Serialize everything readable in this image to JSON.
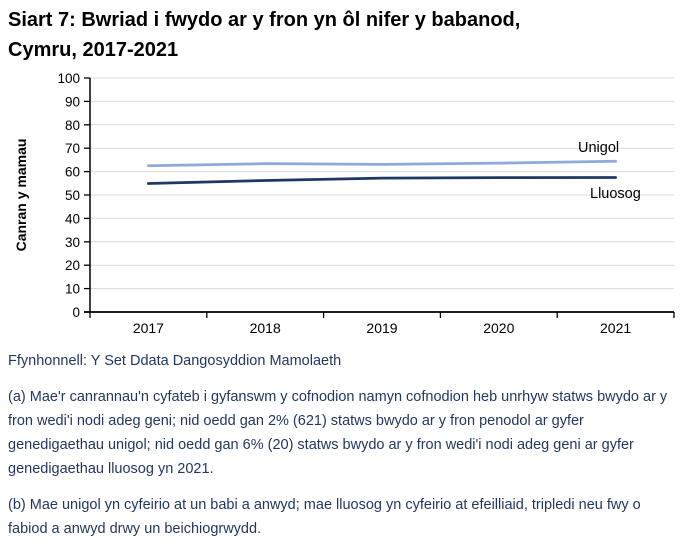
{
  "title": {
    "line1": "Siart 7: Bwriad i fwydo ar y fron yn ôl nifer y babanod,",
    "line2": "Cymru, 2017-2021"
  },
  "chart_data": {
    "type": "line",
    "x": [
      2017,
      2018,
      2019,
      2020,
      2021
    ],
    "series": [
      {
        "name": "Unigol",
        "values": [
          62.5,
          63.4,
          63.1,
          63.6,
          64.4
        ],
        "color": "#8EAADB"
      },
      {
        "name": "Lluosog",
        "values": [
          54.9,
          56.2,
          57.2,
          57.4,
          57.5
        ],
        "color": "#1F3864"
      }
    ],
    "title": "",
    "xlabel": "",
    "ylabel": "Canran y mamau",
    "ylim": [
      0,
      100
    ],
    "ytick_step": 10,
    "grid": true,
    "gridline_color": "#D9D9D9",
    "axis_color": "#000000",
    "legend_position": "end-of-line labels, right side"
  },
  "footer": {
    "source": "Ffynhonnell: Y Set Ddata Dangosyddion Mamolaeth",
    "note_a": "(a) Mae'r canrannau'n cyfateb i gyfanswm y cofnodion namyn cofnodion heb unrhyw statws bwydo ar y fron wedi'i nodi adeg geni; nid oedd gan 2% (621) statws bwydo ar y fron penodol ar gyfer genedigaethau unigol; nid oedd gan 6% (20) statws bwydo ar y fron wedi'i nodi adeg geni ar gyfer genedigaethau lluosog yn 2021.",
    "note_b": "(b) Mae unigol yn cyfeirio at un babi a anwyd; mae lluosog yn cyfeirio at efeilliaid, tripledi neu fwy o fabiod a anwyd drwy un beichiogrwydd."
  },
  "colors": {
    "title_text": "#000000",
    "footer_text": "#23375F",
    "series_unigol": "#8EAADB",
    "series_lluosog": "#1F3864",
    "gridline": "#D9D9D9",
    "axis": "#000000"
  }
}
